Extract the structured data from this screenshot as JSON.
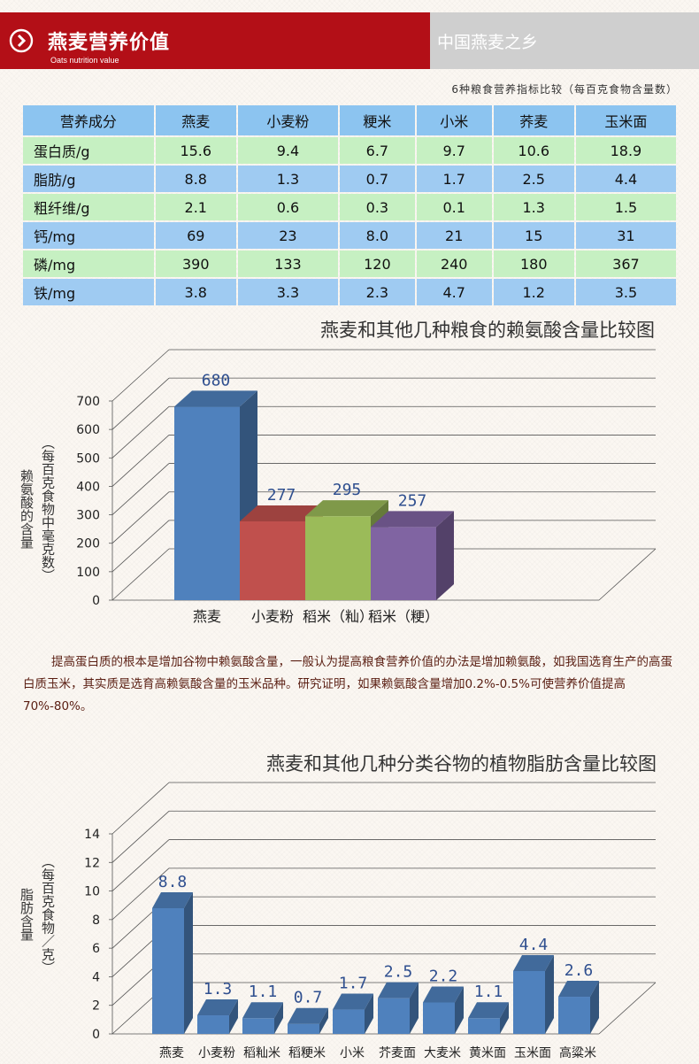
{
  "header": {
    "title": "燕麦营养价值",
    "subtitle": "Oats nutrition value",
    "right_title": "中国燕麦之乡"
  },
  "table": {
    "caption": "6种粮食营养指标比较（每百克食物含量数）",
    "headers": [
      "营养成分",
      "燕麦",
      "小麦粉",
      "粳米",
      "小米",
      "荞麦",
      "玉米面"
    ],
    "rows": [
      [
        "蛋白质/g",
        "15.6",
        "9.4",
        "6.7",
        "9.7",
        "10.6",
        "18.9"
      ],
      [
        "脂肪/g",
        "8.8",
        "1.3",
        "0.7",
        "1.7",
        "2.5",
        "4.4"
      ],
      [
        "粗纤维/g",
        "2.1",
        "0.6",
        "0.3",
        "0.1",
        "1.3",
        "1.5"
      ],
      [
        "钙/mg",
        "69",
        "23",
        "8.0",
        "21",
        "15",
        "31"
      ],
      [
        "磷/mg",
        "390",
        "133",
        "120",
        "240",
        "180",
        "367"
      ],
      [
        "铁/mg",
        "3.8",
        "3.3",
        "2.3",
        "4.7",
        "1.2",
        "3.5"
      ]
    ]
  },
  "paragraph": "提高蛋白质的根本是增加谷物中赖氨酸含量，一般认为提高粮食营养价值的办法是增加赖氨酸，如我国选育生产的高蛋白质玉米，其实质是选育高赖氨酸含量的玉米品种。研究证明，如果赖氨酸含量增加0.2%-0.5%可使营养价值提高70%-80%。",
  "chart_data": [
    {
      "type": "bar",
      "title": "燕麦和其他几种粮食的赖氨酸含量比较图",
      "ylabel_main": "赖氨酸的含量",
      "ylabel_unit": "（每百克食物中毫克数）",
      "categories": [
        "燕麦",
        "小麦粉",
        "稻米（籼）",
        "稻米（粳）"
      ],
      "values": [
        680,
        277,
        295,
        257
      ],
      "data_labels": [
        "680",
        "277",
        "295",
        "257"
      ],
      "yticks": [
        "0",
        "100",
        "200",
        "300",
        "400",
        "500",
        "600",
        "700"
      ],
      "ylim": [
        0,
        700
      ],
      "colors": [
        "#4f81bd",
        "#c0504d",
        "#9bbb59",
        "#8064a2"
      ],
      "grid": true
    },
    {
      "type": "bar",
      "title": "燕麦和其他几种分类谷物的植物脂肪含量比较图",
      "ylabel_main": "脂肪含量",
      "ylabel_unit": "（每百克食物／克）",
      "categories": [
        "燕麦",
        "小麦粉",
        "稻籼米",
        "稻粳米",
        "小米",
        "芥麦面",
        "大麦米",
        "黄米面",
        "玉米面",
        "高粱米"
      ],
      "values": [
        8.8,
        1.3,
        1.1,
        0.7,
        1.7,
        2.5,
        2.2,
        1.1,
        4.4,
        2.6
      ],
      "data_labels": [
        "8.8",
        "1.3",
        "1.1",
        "0.7",
        "1.7",
        "2.5",
        "2.2",
        "1.1",
        "4.4",
        "2.6"
      ],
      "yticks": [
        "0",
        "2",
        "4",
        "6",
        "8",
        "10",
        "12",
        "14"
      ],
      "ylim": [
        0,
        14
      ],
      "colors": [
        "#4f81bd"
      ],
      "grid": true
    }
  ]
}
